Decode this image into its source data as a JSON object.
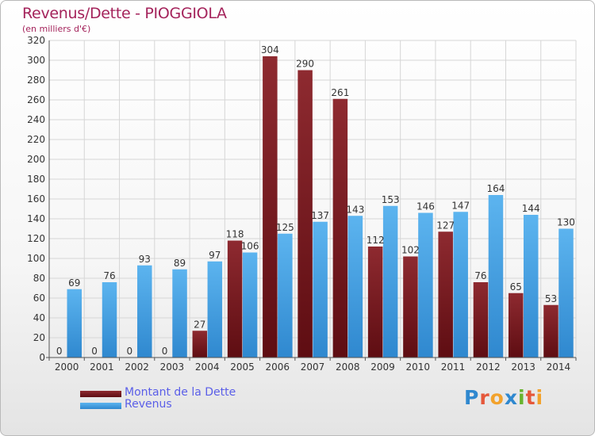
{
  "title": "Revenus/Dette - PIOGGIOLA",
  "subtitle": "(en milliers d'€)",
  "colors": {
    "debt": "#7a1a1f",
    "revenue": "#3f9fe0",
    "title": "#a4235b",
    "legend_text": "#5a5ee8"
  },
  "legend": {
    "debt_label": "Montant de la Dette",
    "revenue_label": "Revenus"
  },
  "logo": {
    "text": "Proxiti"
  },
  "chart_data": {
    "type": "bar",
    "title": "Revenus/Dette - PIOGGIOLA",
    "subtitle": "(en milliers d'€)",
    "categories": [
      "2000",
      "2001",
      "2002",
      "2003",
      "2004",
      "2005",
      "2006",
      "2007",
      "2008",
      "2009",
      "2010",
      "2011",
      "2012",
      "2013",
      "2014"
    ],
    "series": [
      {
        "name": "Montant de la Dette",
        "values": [
          0,
          0,
          0,
          0,
          27,
          118,
          304,
          290,
          261,
          112,
          102,
          127,
          76,
          65,
          53
        ]
      },
      {
        "name": "Revenus",
        "values": [
          69,
          76,
          93,
          89,
          97,
          106,
          125,
          137,
          143,
          153,
          146,
          147,
          164,
          144,
          130
        ]
      }
    ],
    "ylim": [
      0,
      320
    ],
    "yticks": [
      0,
      20,
      40,
      60,
      80,
      100,
      120,
      140,
      160,
      180,
      200,
      220,
      240,
      260,
      280,
      300,
      320
    ],
    "grid": true,
    "legend_position": "bottom-left"
  }
}
